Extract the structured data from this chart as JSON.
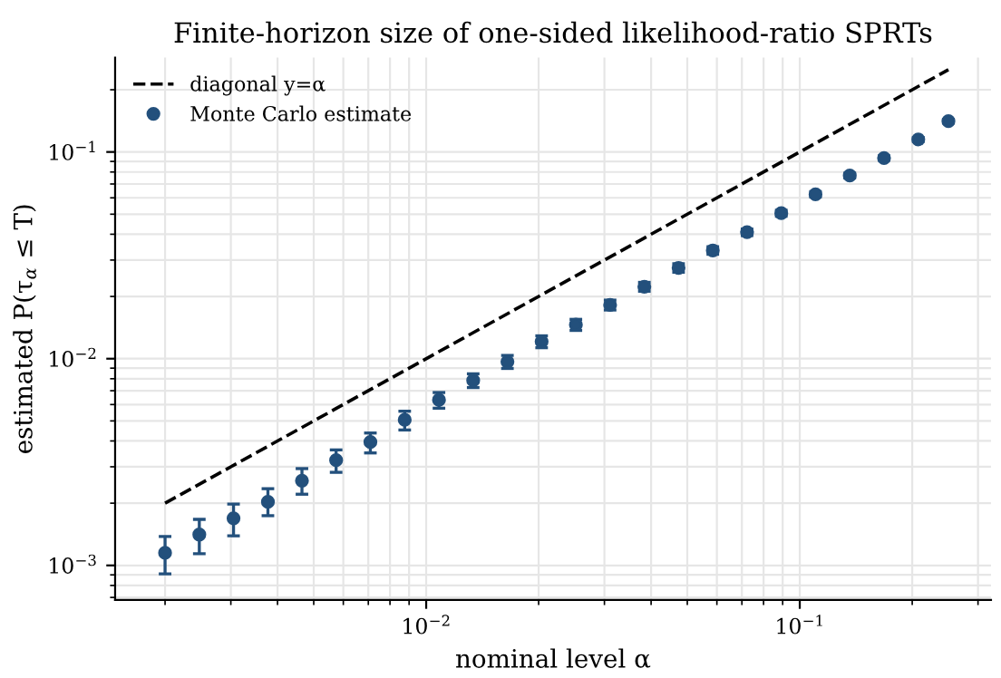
{
  "chart_data": {
    "type": "scatter",
    "title": "Finite-horizon size of one-sided likelihood-ratio SPRTs",
    "xlabel": "nominal level α",
    "ylabel": "estimated P(τ$_{α}$ ≤ T)",
    "log": "xy",
    "grid": true,
    "legend": "top left",
    "xlim": [
      0.00147,
      0.325
    ],
    "ylim": [
      0.00068,
      0.286
    ],
    "xticks": [
      {
        "value": 0.01,
        "label": "10$^{−2}$"
      },
      {
        "value": 0.1,
        "label": "10$^{−1}$"
      }
    ],
    "yticks": [
      {
        "value": 0.001,
        "label": "10$^{−3}$"
      },
      {
        "value": 0.01,
        "label": "10$^{−2}$"
      },
      {
        "value": 0.1,
        "label": "10$^{−1}$"
      }
    ],
    "series": [
      {
        "name": "diagonal y=α",
        "type": "line",
        "color": "#000000",
        "line_style": "dashed",
        "marker": "none",
        "x": [
          0.002,
          0.25
        ],
        "values": [
          0.002,
          0.25
        ]
      },
      {
        "name": "Monte Carlo estimate",
        "color": "#23507c",
        "marker": "circle",
        "x": [
          0.002,
          0.00247,
          0.00305,
          0.00377,
          0.00465,
          0.00574,
          0.00709,
          0.00876,
          0.01082,
          0.01336,
          0.0165,
          0.02037,
          0.02516,
          0.03107,
          0.03837,
          0.04738,
          0.05851,
          0.07226,
          0.08923,
          0.1102,
          0.1361,
          0.1681,
          0.2076,
          0.25
        ],
        "values": [
          0.00115,
          0.00141,
          0.00169,
          0.00203,
          0.00257,
          0.00323,
          0.00395,
          0.00506,
          0.00632,
          0.00785,
          0.00967,
          0.0121,
          0.0146,
          0.0182,
          0.0223,
          0.0275,
          0.0334,
          0.0409,
          0.0506,
          0.0624,
          0.0769,
          0.0935,
          0.115,
          0.141
        ],
        "errors": [
          [
            0.00091,
            0.00138
          ],
          [
            0.00114,
            0.00167
          ],
          [
            0.00139,
            0.00198
          ],
          [
            0.00174,
            0.00235
          ],
          [
            0.00221,
            0.00294
          ],
          [
            0.00282,
            0.00362
          ],
          [
            0.0035,
            0.00437
          ],
          [
            0.00452,
            0.00557
          ],
          [
            0.00576,
            0.00686
          ],
          0.0006,
          0.0007,
          0.0008,
          0.0009,
          0.001,
          0.0011,
          0.0013,
          0.0014,
          0.0015,
          0.0017,
          0.0019,
          0.0021,
          0.0023,
          0.0025,
          0.0027
        ]
      }
    ]
  }
}
